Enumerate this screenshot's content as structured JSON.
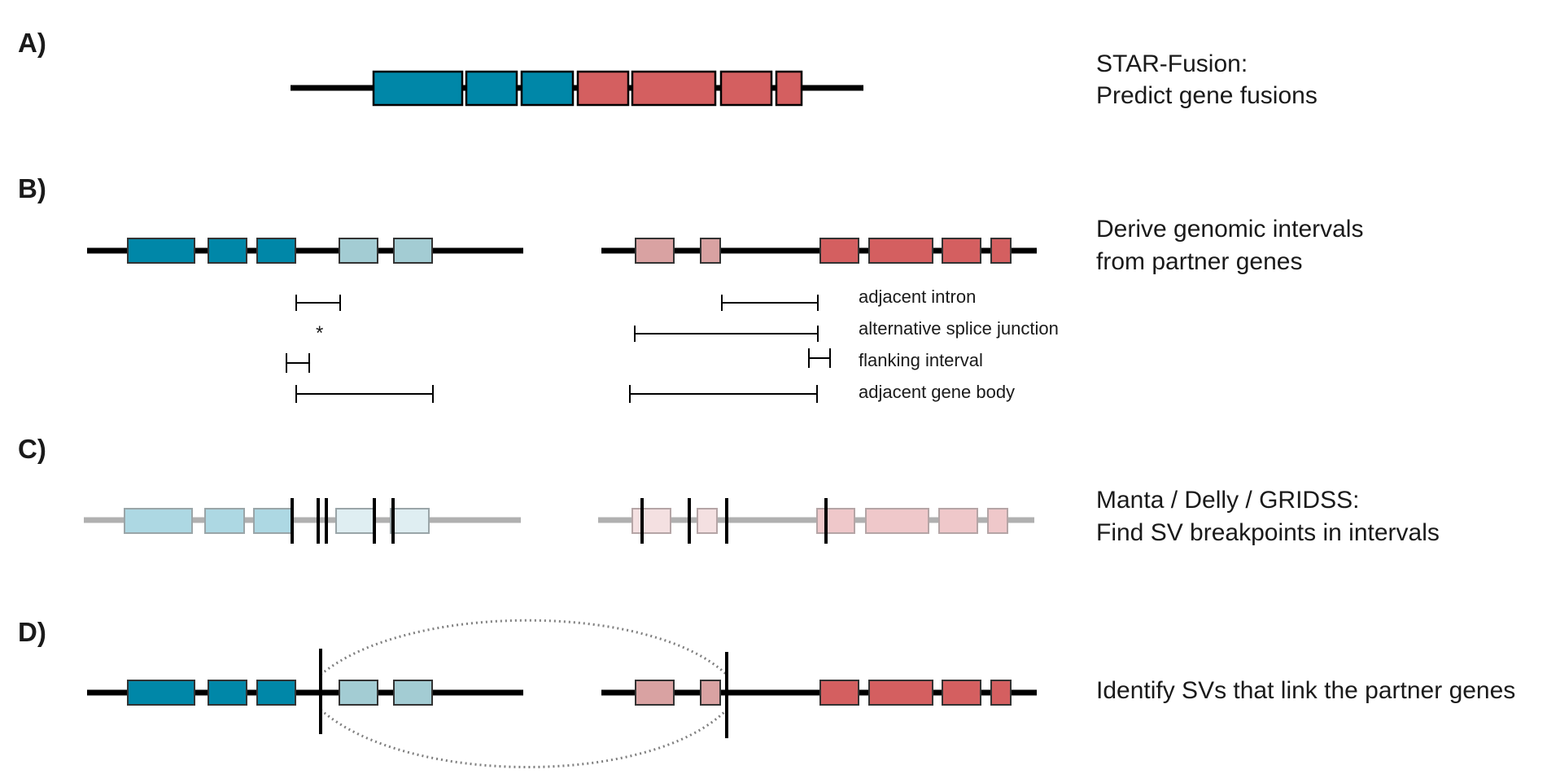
{
  "colors": {
    "gene_a": "#0087a8",
    "gene_a_light": "#a3ccd3",
    "gene_a_faded": "#add8e3",
    "gene_a_faded_light": "#dfeef2",
    "gene_b": "#d45f60",
    "gene_b_light": "#d9a2a2",
    "gene_b_faded": "#efc8ca",
    "gene_b_faded_light": "#f4e0e1",
    "line": "#000000",
    "grey_line": "#b0b0b0",
    "arc": "#808080"
  },
  "panels": {
    "a": {
      "label": "A)",
      "desc_line1": "STAR-Fusion:",
      "desc_line2": "Predict gene fusions"
    },
    "b": {
      "label": "B)",
      "desc_line1": "Derive genomic intervals",
      "desc_line2": "from partner genes",
      "interval_labels": [
        "adjacent intron",
        "alternative splice junction",
        "flanking interval",
        "adjacent gene body"
      ],
      "asterisk": "*"
    },
    "c": {
      "label": "C)",
      "desc_line1": "Manta / Delly / GRIDSS:",
      "desc_line2": "Find SV breakpoints in intervals"
    },
    "d": {
      "label": "D)",
      "desc_line1": "Identify SVs that link the partner genes"
    }
  }
}
